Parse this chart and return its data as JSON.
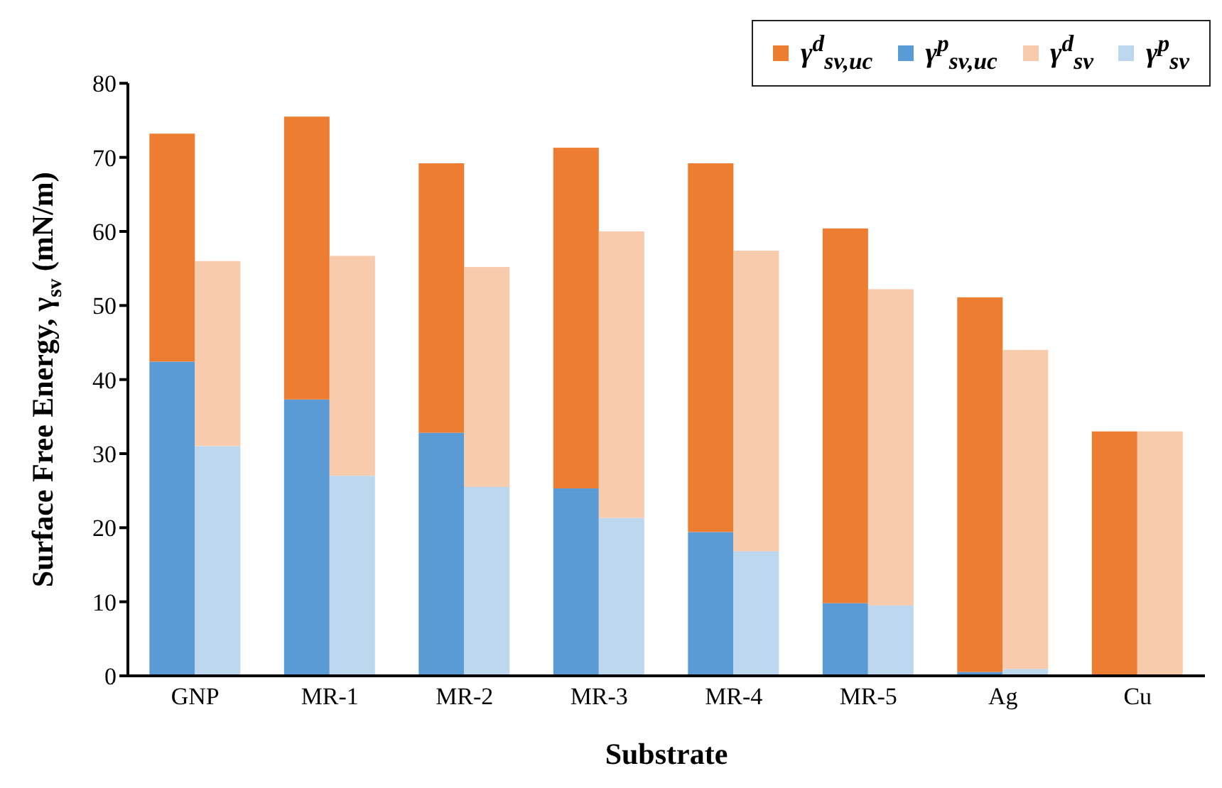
{
  "chart_data": {
    "type": "bar",
    "xlabel": "Substrate",
    "ylabel": "Surface Free Energy, γ$_{sv}$ (mN/m)",
    "categories": [
      "GNP",
      "MR-1",
      "MR-2",
      "MR-3",
      "MR-4",
      "MR-5",
      "Ag",
      "Cu"
    ],
    "series": [
      {
        "name": "γ$^{d}$$_{sv,uc}$",
        "color": "#ed7d31",
        "base": [
          42.4,
          37.3,
          32.8,
          25.3,
          19.4,
          9.8,
          0.5,
          0
        ],
        "values": [
          30.8,
          38.2,
          36.4,
          46.0,
          49.8,
          50.6,
          50.6,
          33
        ]
      },
      {
        "name": "γ$^{p}$$_{sv,uc}$",
        "color": "#5b9bd5",
        "values": [
          42.4,
          37.3,
          32.8,
          25.3,
          19.4,
          9.8,
          0.5,
          0
        ]
      },
      {
        "name": "γ$^{d}$$_{sv}$",
        "color": "#f8cbad",
        "base": [
          31,
          27,
          25.5,
          21.3,
          16.8,
          9.5,
          0.9,
          0
        ],
        "values": [
          25,
          29.7,
          29.7,
          38.7,
          40.6,
          42.7,
          43.1,
          33
        ]
      },
      {
        "name": "γ$^{p}$$_{sv}$",
        "color": "#bdd7ee",
        "values": [
          31,
          27,
          25.5,
          21.3,
          16.8,
          9.5,
          0.9,
          0
        ]
      }
    ],
    "ylim": [
      0,
      80
    ],
    "yticks": [
      0,
      10,
      20,
      30,
      40,
      50,
      60,
      70,
      80
    ],
    "legend": "top right"
  }
}
